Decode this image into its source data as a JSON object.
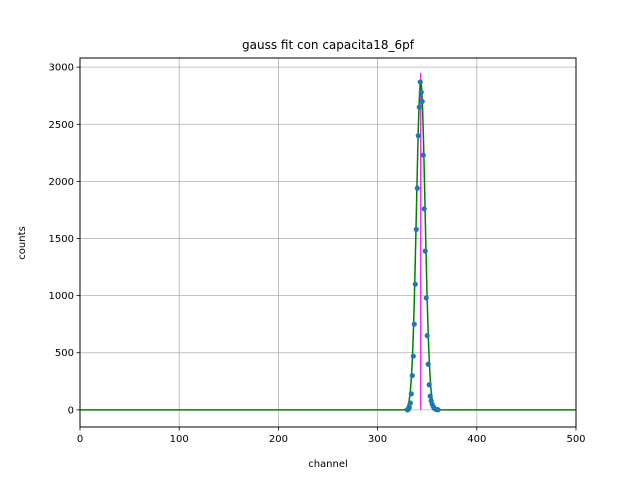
{
  "chart_data": {
    "type": "scatter",
    "title": "gauss fit con capacita18_6pf",
    "xlabel": "channel",
    "ylabel": "counts",
    "xlim": [
      0,
      500
    ],
    "ylim": [
      -150,
      3080
    ],
    "xticks": [
      0,
      100,
      200,
      300,
      400,
      500
    ],
    "yticks": [
      0,
      500,
      1000,
      1500,
      2000,
      2500,
      3000
    ],
    "grid": true,
    "colors": {
      "points": "#1f77b4",
      "fit": "#008000",
      "peak_marker": "#ff00ff",
      "grid": "#b0b0b0"
    },
    "series": [
      {
        "kind": "points",
        "x": [
          330,
          331,
          332,
          333,
          334,
          335,
          336,
          337,
          338,
          339,
          340,
          341,
          342,
          343,
          344,
          345,
          346,
          347,
          348,
          349,
          350,
          351,
          352,
          353,
          354,
          355,
          356,
          357,
          358,
          359,
          360,
          361
        ],
        "y": [
          0,
          5,
          20,
          60,
          140,
          300,
          470,
          750,
          1100,
          1580,
          1940,
          2400,
          2650,
          2870,
          2780,
          2700,
          2230,
          1760,
          1390,
          980,
          650,
          400,
          220,
          120,
          80,
          50,
          30,
          15,
          8,
          4,
          2,
          1
        ]
      },
      {
        "kind": "fit",
        "type": "line",
        "mean": 343.5,
        "sigma": 4.4,
        "amplitude": 2870,
        "x_range": [
          0,
          500
        ]
      },
      {
        "kind": "peak_marker",
        "x": 343.5,
        "y": 2950
      }
    ]
  }
}
